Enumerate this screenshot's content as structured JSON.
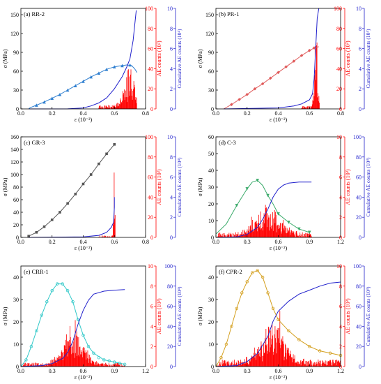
{
  "chart_data": [
    {
      "type": "line",
      "panel_label": "(a) RR-2",
      "xlabel": "ε (10⁻²)",
      "ylabel_left": "σ (MPa)",
      "ylabel_mid": "AE counts (10²)",
      "ylabel_right": "Cumulative AE counts (10⁴)",
      "xlim": [
        0,
        0.8
      ],
      "xticks": [
        "0.0",
        "0.2",
        "0.4",
        "0.6",
        "0.8"
      ],
      "ylim_left": [
        0,
        160
      ],
      "yticks_left": [
        "0",
        "30",
        "60",
        "90",
        "120",
        "150"
      ],
      "ylim_mid": [
        0,
        100
      ],
      "yticks_mid": [
        "0",
        "20",
        "40",
        "60",
        "80",
        "100"
      ],
      "ylim_right": [
        0,
        10
      ],
      "yticks_right": [
        "0",
        "2",
        "4",
        "6",
        "8",
        "10"
      ],
      "stress_color": "#2f7fd0",
      "marker": "triangle",
      "stress": [
        [
          0.05,
          0
        ],
        [
          0.06,
          2
        ],
        [
          0.1,
          6
        ],
        [
          0.15,
          11
        ],
        [
          0.2,
          17
        ],
        [
          0.25,
          23
        ],
        [
          0.3,
          30
        ],
        [
          0.35,
          37
        ],
        [
          0.4,
          44
        ],
        [
          0.45,
          51
        ],
        [
          0.5,
          57
        ],
        [
          0.55,
          63
        ],
        [
          0.6,
          67
        ],
        [
          0.65,
          69
        ],
        [
          0.68,
          70
        ],
        [
          0.71,
          69
        ],
        [
          0.73,
          64
        ],
        [
          0.745,
          58
        ]
      ],
      "stress_markers": [
        [
          0.1,
          6
        ],
        [
          0.15,
          11
        ],
        [
          0.2,
          17
        ],
        [
          0.25,
          23
        ],
        [
          0.3,
          30
        ],
        [
          0.35,
          37
        ],
        [
          0.4,
          44
        ],
        [
          0.45,
          51
        ],
        [
          0.5,
          57
        ],
        [
          0.55,
          63
        ],
        [
          0.6,
          67
        ],
        [
          0.65,
          69
        ],
        [
          0.7,
          70
        ]
      ],
      "cumulative": [
        [
          0.05,
          0
        ],
        [
          0.3,
          0.01
        ],
        [
          0.4,
          0.1
        ],
        [
          0.45,
          0.3
        ],
        [
          0.5,
          0.6
        ],
        [
          0.55,
          1.1
        ],
        [
          0.6,
          2.0
        ],
        [
          0.65,
          3.2
        ],
        [
          0.68,
          4.2
        ],
        [
          0.7,
          5.0
        ],
        [
          0.72,
          6.8
        ],
        [
          0.74,
          9.8
        ]
      ],
      "ae_peak_x": 0.7,
      "ae_start": 0.5,
      "ae_end": 0.745,
      "ae_max": 40,
      "ae_width": 0.05,
      "ae_base": 4
    },
    {
      "type": "line",
      "panel_label": "(b) PR-1",
      "xlabel": "ε (10⁻²)",
      "ylabel_left": "σ (MPa)",
      "ylabel_mid": "AE counts (10²)",
      "ylabel_right": "Cumulative AE counts (10⁴)",
      "xlim": [
        0,
        0.8
      ],
      "xticks": [
        "0.0",
        "0.2",
        "0.4",
        "0.6",
        "0.8"
      ],
      "ylim_left": [
        0,
        160
      ],
      "yticks_left": [
        "0",
        "30",
        "60",
        "90",
        "120",
        "150"
      ],
      "ylim_mid": [
        0,
        100
      ],
      "yticks_mid": [
        "0",
        "20",
        "40",
        "60",
        "80",
        "100"
      ],
      "ylim_right": [
        0,
        10
      ],
      "yticks_right": [
        "0",
        "2",
        "4",
        "6",
        "8",
        "10"
      ],
      "stress_color": "#e05a5a",
      "marker": "diamond",
      "stress": [
        [
          0.05,
          0
        ],
        [
          0.1,
          7
        ],
        [
          0.15,
          15
        ],
        [
          0.2,
          23
        ],
        [
          0.25,
          32
        ],
        [
          0.3,
          40
        ],
        [
          0.35,
          49
        ],
        [
          0.4,
          58
        ],
        [
          0.45,
          67
        ],
        [
          0.5,
          76
        ],
        [
          0.55,
          85
        ],
        [
          0.6,
          93
        ],
        [
          0.63,
          97
        ],
        [
          0.66,
          99
        ]
      ],
      "stress_markers": [
        [
          0.1,
          7
        ],
        [
          0.15,
          15
        ],
        [
          0.2,
          23
        ],
        [
          0.25,
          32
        ],
        [
          0.3,
          40
        ],
        [
          0.35,
          49
        ],
        [
          0.4,
          58
        ],
        [
          0.45,
          67
        ],
        [
          0.5,
          76
        ],
        [
          0.55,
          85
        ],
        [
          0.6,
          93
        ],
        [
          0.63,
          97
        ]
      ],
      "cumulative": [
        [
          0.05,
          0
        ],
        [
          0.4,
          0.1
        ],
        [
          0.5,
          0.3
        ],
        [
          0.55,
          0.5
        ],
        [
          0.6,
          0.9
        ],
        [
          0.62,
          1.5
        ],
        [
          0.63,
          3
        ],
        [
          0.64,
          6
        ],
        [
          0.65,
          9
        ],
        [
          0.66,
          10
        ]
      ],
      "ae_peak_x": 0.64,
      "ae_start": 0.55,
      "ae_end": 0.665,
      "ae_max": 75,
      "ae_width": 0.015,
      "ae_base": 3
    },
    {
      "type": "line",
      "panel_label": "(c) GR-3",
      "xlabel": "ε (10⁻²)",
      "ylabel_left": "σ (MPa)",
      "ylabel_mid": "AE counts (10²)",
      "ylabel_right": "Cumulative AE counts (10⁴)",
      "xlim": [
        0,
        0.8
      ],
      "xticks": [
        "0.0",
        "0.2",
        "0.4",
        "0.6",
        "0.8"
      ],
      "ylim_left": [
        0,
        160
      ],
      "yticks_left": [
        "0",
        "20",
        "40",
        "60",
        "80",
        "100",
        "120",
        "140",
        "160"
      ],
      "ylim_mid": [
        0,
        100
      ],
      "yticks_mid": [
        "0",
        "20",
        "40",
        "60",
        "80",
        "100"
      ],
      "ylim_right": [
        0,
        10
      ],
      "yticks_right": [
        "0",
        "2",
        "4",
        "6",
        "8",
        "10"
      ],
      "stress_color": "#555555",
      "marker": "square",
      "stress": [
        [
          0.05,
          2
        ],
        [
          0.1,
          8
        ],
        [
          0.15,
          17
        ],
        [
          0.2,
          28
        ],
        [
          0.25,
          40
        ],
        [
          0.3,
          54
        ],
        [
          0.35,
          69
        ],
        [
          0.4,
          85
        ],
        [
          0.45,
          100
        ],
        [
          0.5,
          117
        ],
        [
          0.55,
          133
        ],
        [
          0.6,
          148
        ]
      ],
      "stress_markers": [
        [
          0.05,
          2
        ],
        [
          0.1,
          8
        ],
        [
          0.15,
          17
        ],
        [
          0.2,
          28
        ],
        [
          0.25,
          40
        ],
        [
          0.3,
          54
        ],
        [
          0.35,
          69
        ],
        [
          0.4,
          85
        ],
        [
          0.45,
          100
        ],
        [
          0.5,
          117
        ],
        [
          0.55,
          133
        ],
        [
          0.6,
          148
        ]
      ],
      "cumulative": [
        [
          0.05,
          0
        ],
        [
          0.4,
          0.05
        ],
        [
          0.5,
          0.2
        ],
        [
          0.55,
          0.5
        ],
        [
          0.58,
          1.0
        ],
        [
          0.595,
          1.5
        ],
        [
          0.6,
          3.0
        ],
        [
          0.6,
          4.0
        ]
      ],
      "ae_peak_x": 0.6,
      "ae_start": 0.5,
      "ae_end": 0.605,
      "ae_max": 80,
      "ae_width": 0.006,
      "ae_base": 2
    },
    {
      "type": "line",
      "panel_label": "(d) C-3",
      "xlabel": "ε (10⁻²)",
      "ylabel_left": "σ (MPa)",
      "ylabel_mid": "AE counts (10²)",
      "ylabel_right": "Cumulative AE counts (10⁴)",
      "xlim": [
        0,
        1.2
      ],
      "xticks": [
        "0.0",
        "0.3",
        "0.6",
        "0.9",
        "1.2"
      ],
      "ylim_left": [
        0,
        60
      ],
      "yticks_left": [
        "0",
        "10",
        "20",
        "30",
        "40",
        "50",
        "60"
      ],
      "ylim_mid": [
        0,
        10
      ],
      "yticks_mid": [
        "0",
        "2",
        "4",
        "6",
        "8",
        "10"
      ],
      "ylim_right": [
        0,
        100
      ],
      "yticks_right": [
        "0",
        "20",
        "40",
        "60",
        "80",
        "100"
      ],
      "stress_color": "#3aaa6a",
      "marker": "triangle-down",
      "stress": [
        [
          0,
          2
        ],
        [
          0.1,
          8
        ],
        [
          0.2,
          19
        ],
        [
          0.3,
          29
        ],
        [
          0.35,
          33
        ],
        [
          0.4,
          34
        ],
        [
          0.45,
          31
        ],
        [
          0.5,
          25
        ],
        [
          0.55,
          20
        ],
        [
          0.6,
          14
        ],
        [
          0.7,
          9
        ],
        [
          0.8,
          5
        ],
        [
          0.9,
          3
        ]
      ],
      "stress_markers": [
        [
          0.2,
          19
        ],
        [
          0.3,
          29
        ],
        [
          0.4,
          34
        ],
        [
          0.5,
          25
        ],
        [
          0.6,
          14
        ],
        [
          0.7,
          9
        ],
        [
          0.8,
          5
        ],
        [
          0.9,
          3
        ]
      ],
      "cumulative": [
        [
          0,
          0
        ],
        [
          0.2,
          0.5
        ],
        [
          0.3,
          3
        ],
        [
          0.4,
          10
        ],
        [
          0.45,
          18
        ],
        [
          0.5,
          28
        ],
        [
          0.55,
          40
        ],
        [
          0.6,
          48
        ],
        [
          0.65,
          52
        ],
        [
          0.7,
          54
        ],
        [
          0.8,
          55
        ],
        [
          0.92,
          55
        ]
      ],
      "ae_peak_x": 0.5,
      "ae_start": 0.02,
      "ae_end": 0.92,
      "ae_max": 3.2,
      "ae_width": 0.16,
      "ae_base": 0.5
    },
    {
      "type": "line",
      "panel_label": "(e) CRR-1",
      "xlabel": "ε (10⁻²)",
      "ylabel_left": "σ (MPa)",
      "ylabel_mid": "AE counts (10²)",
      "ylabel_right": "Cumulative AE counts (10⁴)",
      "xlim": [
        0,
        1.2
      ],
      "xticks": [
        "0.0",
        "0.3",
        "0.6",
        "0.9",
        "1.2"
      ],
      "ylim_left": [
        0,
        45
      ],
      "yticks_left": [
        "0",
        "10",
        "20",
        "30",
        "40"
      ],
      "ylim_mid": [
        0,
        10
      ],
      "yticks_mid": [
        "0",
        "2",
        "4",
        "6",
        "8",
        "10"
      ],
      "ylim_right": [
        0,
        100
      ],
      "yticks_right": [
        "0",
        "20",
        "40",
        "60",
        "80",
        "100"
      ],
      "stress_color": "#30c8c8",
      "marker": "circle",
      "stress": [
        [
          0,
          0
        ],
        [
          0.05,
          3
        ],
        [
          0.1,
          9
        ],
        [
          0.15,
          16
        ],
        [
          0.2,
          23
        ],
        [
          0.25,
          29
        ],
        [
          0.3,
          34
        ],
        [
          0.35,
          37
        ],
        [
          0.4,
          37
        ],
        [
          0.45,
          34
        ],
        [
          0.5,
          29
        ],
        [
          0.55,
          21
        ],
        [
          0.6,
          14
        ],
        [
          0.65,
          9
        ],
        [
          0.7,
          6
        ],
        [
          0.8,
          3
        ],
        [
          0.9,
          2
        ],
        [
          1.0,
          1
        ]
      ],
      "stress_markers": [
        [
          0.05,
          3
        ],
        [
          0.1,
          9
        ],
        [
          0.15,
          16
        ],
        [
          0.2,
          23
        ],
        [
          0.25,
          29
        ],
        [
          0.3,
          34
        ],
        [
          0.35,
          37
        ],
        [
          0.4,
          37
        ],
        [
          0.45,
          34
        ],
        [
          0.5,
          29
        ],
        [
          0.55,
          21
        ],
        [
          0.6,
          14
        ],
        [
          0.65,
          9
        ],
        [
          0.7,
          6
        ],
        [
          0.75,
          4
        ],
        [
          0.8,
          3
        ],
        [
          0.85,
          2.5
        ],
        [
          0.9,
          2
        ],
        [
          0.95,
          1.5
        ],
        [
          1.0,
          1
        ]
      ],
      "cumulative": [
        [
          0,
          0
        ],
        [
          0.2,
          1
        ],
        [
          0.3,
          3
        ],
        [
          0.4,
          8
        ],
        [
          0.45,
          14
        ],
        [
          0.5,
          25
        ],
        [
          0.55,
          42
        ],
        [
          0.6,
          56
        ],
        [
          0.65,
          66
        ],
        [
          0.7,
          72
        ],
        [
          0.8,
          75
        ],
        [
          0.9,
          76
        ],
        [
          1.0,
          76.5
        ]
      ],
      "ae_peak_x": 0.5,
      "ae_start": 0.02,
      "ae_end": 1.0,
      "ae_max": 4,
      "ae_width": 0.13,
      "ae_base": 0.4
    },
    {
      "type": "line",
      "panel_label": "(f) CPR-2",
      "xlabel": "ε (10⁻²)",
      "ylabel_left": "σ (MPa)",
      "ylabel_mid": "AE counts (10²)",
      "ylabel_right": "Cumulative AE counts (10⁴)",
      "xlim": [
        0,
        1.2
      ],
      "xticks": [
        "0.0",
        "0.3",
        "0.6",
        "0.9",
        "1.2"
      ],
      "ylim_left": [
        0,
        45
      ],
      "yticks_left": [
        "0",
        "10",
        "20",
        "30",
        "40"
      ],
      "ylim_mid": [
        0,
        10
      ],
      "yticks_mid": [
        "0",
        "2",
        "4",
        "6",
        "8",
        "10"
      ],
      "ylim_right": [
        0,
        100
      ],
      "yticks_right": [
        "0",
        "20",
        "40",
        "60",
        "80",
        "100"
      ],
      "stress_color": "#d4a020",
      "marker": "circle",
      "stress": [
        [
          0,
          0
        ],
        [
          0.05,
          4
        ],
        [
          0.1,
          10
        ],
        [
          0.15,
          18
        ],
        [
          0.2,
          26
        ],
        [
          0.25,
          33
        ],
        [
          0.3,
          38
        ],
        [
          0.35,
          42
        ],
        [
          0.4,
          43
        ],
        [
          0.45,
          40
        ],
        [
          0.5,
          33
        ],
        [
          0.55,
          26
        ],
        [
          0.6,
          21
        ],
        [
          0.7,
          16
        ],
        [
          0.8,
          12
        ],
        [
          0.9,
          9
        ],
        [
          1.0,
          7
        ],
        [
          1.1,
          6
        ],
        [
          1.2,
          5
        ]
      ],
      "stress_markers": [
        [
          0.05,
          4
        ],
        [
          0.1,
          10
        ],
        [
          0.15,
          18
        ],
        [
          0.2,
          26
        ],
        [
          0.25,
          33
        ],
        [
          0.3,
          38
        ],
        [
          0.35,
          42
        ],
        [
          0.4,
          43
        ],
        [
          0.45,
          40
        ],
        [
          0.5,
          33
        ],
        [
          0.55,
          26
        ],
        [
          0.6,
          21
        ],
        [
          0.7,
          16
        ],
        [
          0.8,
          12
        ],
        [
          0.9,
          9
        ],
        [
          1.0,
          7
        ],
        [
          1.1,
          6
        ],
        [
          1.2,
          5
        ]
      ],
      "cumulative": [
        [
          0,
          0
        ],
        [
          0.2,
          1
        ],
        [
          0.3,
          5
        ],
        [
          0.4,
          13
        ],
        [
          0.5,
          30
        ],
        [
          0.55,
          45
        ],
        [
          0.6,
          55
        ],
        [
          0.7,
          65
        ],
        [
          0.8,
          72
        ],
        [
          0.9,
          76
        ],
        [
          1.0,
          80
        ],
        [
          1.1,
          83
        ],
        [
          1.2,
          84
        ]
      ],
      "ae_peak_x": 0.55,
      "ae_start": 0.02,
      "ae_end": 1.2,
      "ae_max": 4,
      "ae_width": 0.16,
      "ae_base": 0.7
    }
  ]
}
